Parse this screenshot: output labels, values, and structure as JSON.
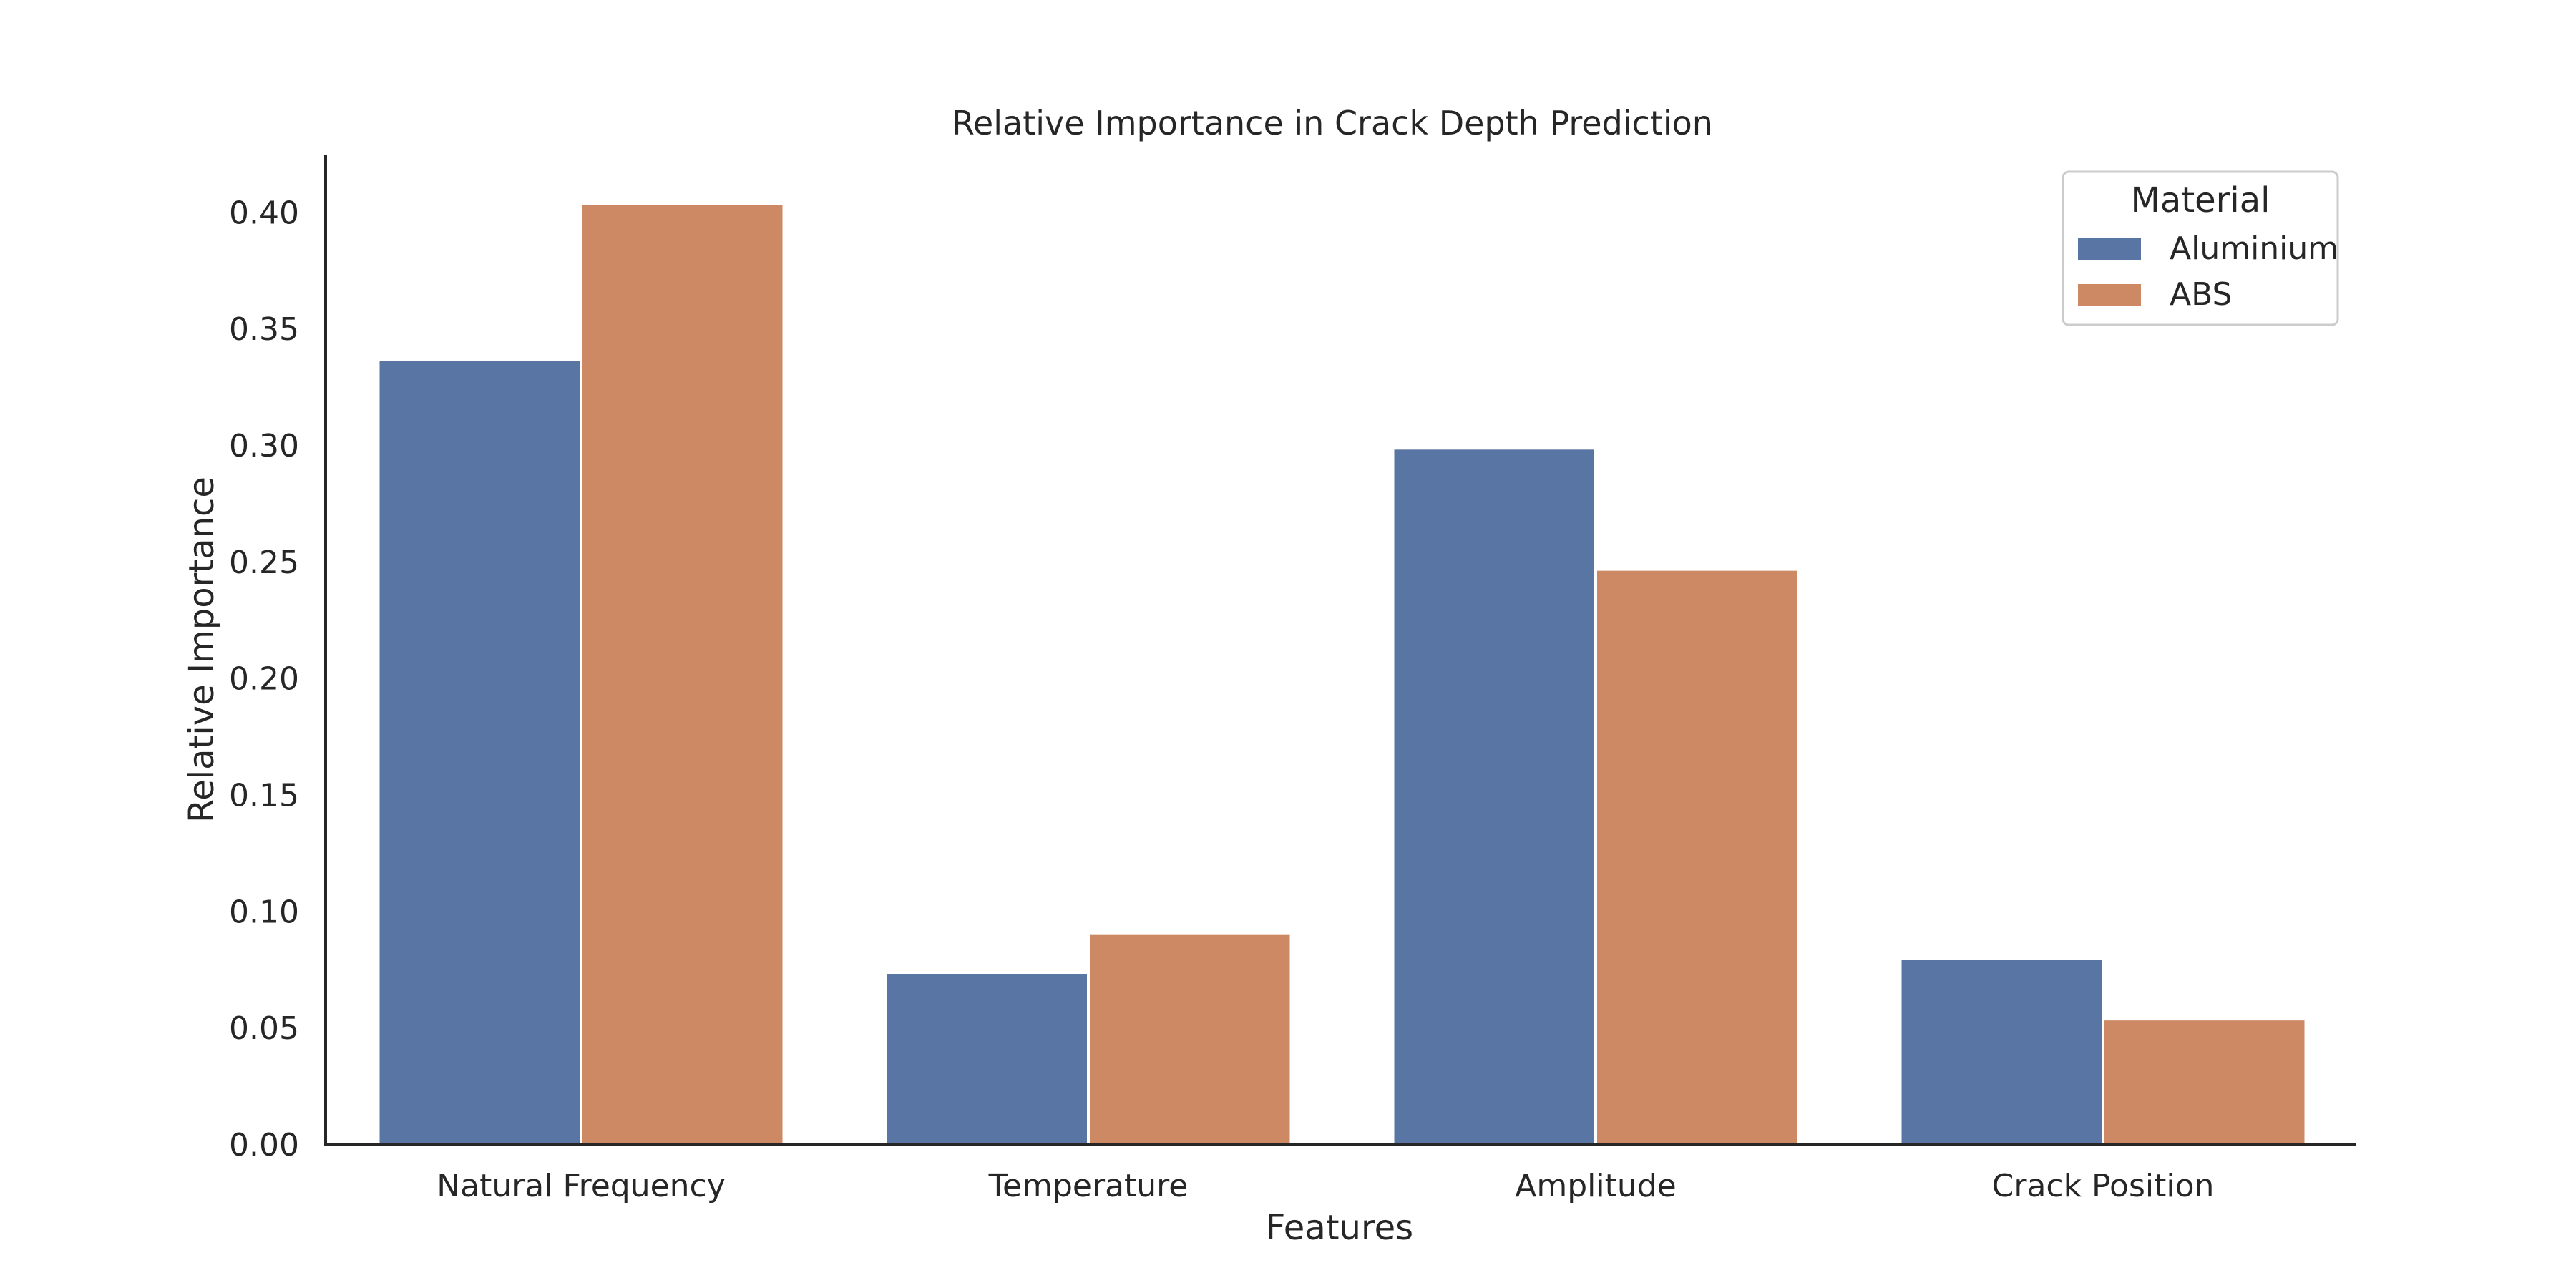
{
  "chart_data": {
    "type": "bar",
    "title": "Relative Importance in Crack Depth Prediction",
    "xlabel": "Features",
    "ylabel": "Relative Importance",
    "categories": [
      "Natural Frequency",
      "Temperature",
      "Amplitude",
      "Crack Position"
    ],
    "series": [
      {
        "name": "Aluminium",
        "color": "#5975a4",
        "values": [
          0.337,
          0.074,
          0.299,
          0.08
        ]
      },
      {
        "name": "ABS",
        "color": "#cc8963",
        "values": [
          0.404,
          0.091,
          0.247,
          0.054
        ]
      }
    ],
    "ylim": [
      0,
      0.425
    ],
    "yticks": [
      "0.00",
      "0.05",
      "0.10",
      "0.15",
      "0.20",
      "0.25",
      "0.30",
      "0.35",
      "0.40"
    ],
    "legend": {
      "title": "Material",
      "placement": "top-right"
    },
    "grid": false
  }
}
